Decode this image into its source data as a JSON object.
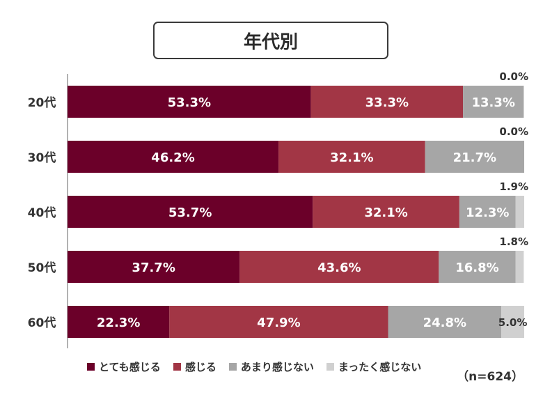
{
  "title": "年代別",
  "sample_size": "（n=624）",
  "chart_data": {
    "type": "bar",
    "orientation": "horizontal",
    "stacked": true,
    "normalized": "percent",
    "categories": [
      "20代",
      "30代",
      "40代",
      "50代",
      "60代"
    ],
    "series": [
      {
        "name": "とても感じる",
        "color": "#6b0029",
        "values": [
          53.3,
          46.2,
          53.7,
          37.7,
          22.3
        ]
      },
      {
        "name": "感じる",
        "color": "#a23645",
        "values": [
          33.3,
          32.1,
          32.1,
          43.6,
          47.9
        ]
      },
      {
        "name": "あまり感じない",
        "color": "#a6a6a6",
        "values": [
          13.3,
          21.7,
          12.3,
          16.8,
          24.8
        ]
      },
      {
        "name": "まったく感じない",
        "color": "#d0d0d0",
        "values": [
          0.0,
          0.0,
          1.9,
          1.8,
          5.0
        ]
      }
    ],
    "xlim": [
      0,
      100
    ],
    "legend": "bottom",
    "grid": false
  }
}
